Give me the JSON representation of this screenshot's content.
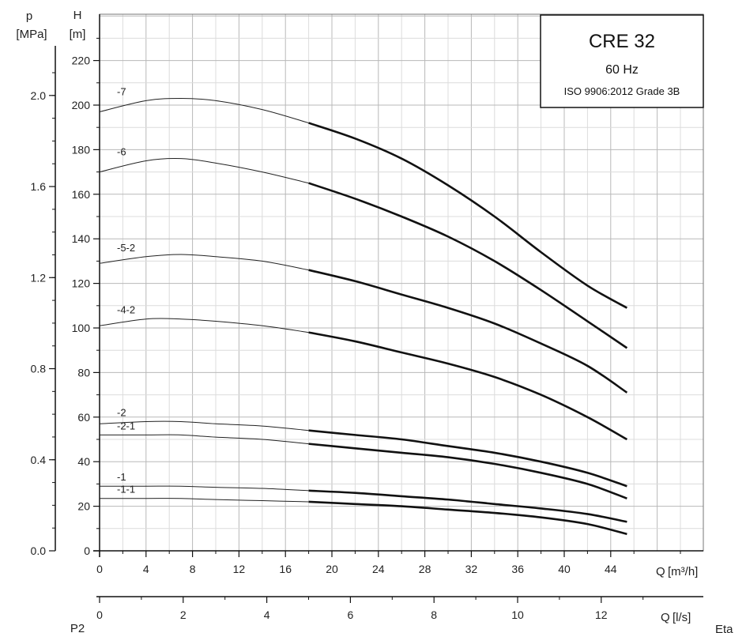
{
  "chart_data": {
    "type": "line",
    "title": "CRE 32",
    "subtitle": "60 Hz",
    "standard": "ISO 9906:2012 Grade 3B",
    "x_axis": {
      "label": "Q",
      "unit": "[m³/h]",
      "range": [
        0,
        48
      ],
      "ticks": [
        "0",
        "4",
        "8",
        "12",
        "16",
        "20",
        "24",
        "28",
        "32",
        "36",
        "40",
        "44"
      ]
    },
    "x2_axis": {
      "label": "Q",
      "unit": "[l/s]",
      "range": [
        0,
        13.333
      ],
      "ticks": [
        "0",
        "2",
        "4",
        "6",
        "8",
        "10",
        "12"
      ]
    },
    "y_axis": {
      "label": "H",
      "unit": "[m]",
      "range": [
        0,
        230
      ],
      "ticks": [
        "0",
        "20",
        "40",
        "60",
        "80",
        "100",
        "120",
        "140",
        "160",
        "180",
        "200",
        "220"
      ]
    },
    "y2_axis": {
      "label": "p",
      "unit": "[MPa]",
      "range": [
        0,
        2.25
      ],
      "ticks": [
        "0.0",
        "0.4",
        "0.8",
        "1.2",
        "1.6",
        "2.0"
      ]
    },
    "grid": true,
    "extra_labels": [
      "P2",
      "Eta"
    ],
    "series": [
      {
        "name": "-7",
        "bold_from": 18,
        "x": [
          0,
          4,
          7,
          10,
          14,
          18,
          22,
          26,
          30,
          34,
          38,
          42,
          45.4
        ],
        "y": [
          197,
          202,
          203,
          202,
          198,
          192,
          185,
          176,
          164,
          150,
          134,
          119,
          109
        ]
      },
      {
        "name": "-6",
        "bold_from": 18,
        "x": [
          0,
          4,
          7,
          10,
          14,
          18,
          22,
          26,
          30,
          34,
          38,
          42,
          45.4
        ],
        "y": [
          170,
          175,
          176,
          174,
          170,
          165,
          158,
          150,
          141,
          130,
          117,
          103,
          91
        ]
      },
      {
        "name": "-5-2",
        "bold_from": 18,
        "x": [
          0,
          4,
          7,
          10,
          14,
          18,
          22,
          26,
          30,
          34,
          38,
          42,
          45.4
        ],
        "y": [
          129,
          132,
          133,
          132,
          130,
          126,
          121,
          115,
          109,
          102,
          93,
          83,
          71
        ]
      },
      {
        "name": "-4-2",
        "bold_from": 18,
        "x": [
          0,
          4,
          7,
          10,
          14,
          18,
          22,
          26,
          30,
          34,
          38,
          42,
          45.4
        ],
        "y": [
          101,
          104,
          104,
          103,
          101,
          98,
          94,
          89,
          84,
          78,
          70,
          60,
          50
        ]
      },
      {
        "name": "-2",
        "bold_from": 18,
        "x": [
          0,
          4,
          7,
          10,
          14,
          18,
          22,
          26,
          30,
          34,
          38,
          42,
          45.4
        ],
        "y": [
          57,
          58,
          58,
          57,
          56,
          54,
          52,
          50,
          47,
          44,
          40,
          35,
          29
        ]
      },
      {
        "name": "-2-1",
        "bold_from": 18,
        "x": [
          0,
          4,
          7,
          10,
          14,
          18,
          22,
          26,
          30,
          34,
          38,
          42,
          45.4
        ],
        "y": [
          52,
          52,
          52,
          51,
          50,
          48,
          46,
          44,
          42,
          39,
          35,
          30,
          23.5
        ]
      },
      {
        "name": "-1",
        "bold_from": 18,
        "x": [
          0,
          4,
          7,
          10,
          14,
          18,
          22,
          26,
          30,
          34,
          38,
          42,
          45.4
        ],
        "y": [
          29,
          29,
          29,
          28.5,
          28,
          27,
          26,
          24.5,
          23,
          21,
          19,
          16.5,
          13
        ]
      },
      {
        "name": "-1-1",
        "bold_from": 18,
        "x": [
          0,
          4,
          7,
          10,
          14,
          18,
          22,
          26,
          30,
          34,
          38,
          42,
          45.4
        ],
        "y": [
          23.5,
          23.5,
          23.5,
          23,
          22.5,
          22,
          21,
          20,
          18.5,
          17,
          15,
          12,
          7.5
        ]
      }
    ]
  }
}
